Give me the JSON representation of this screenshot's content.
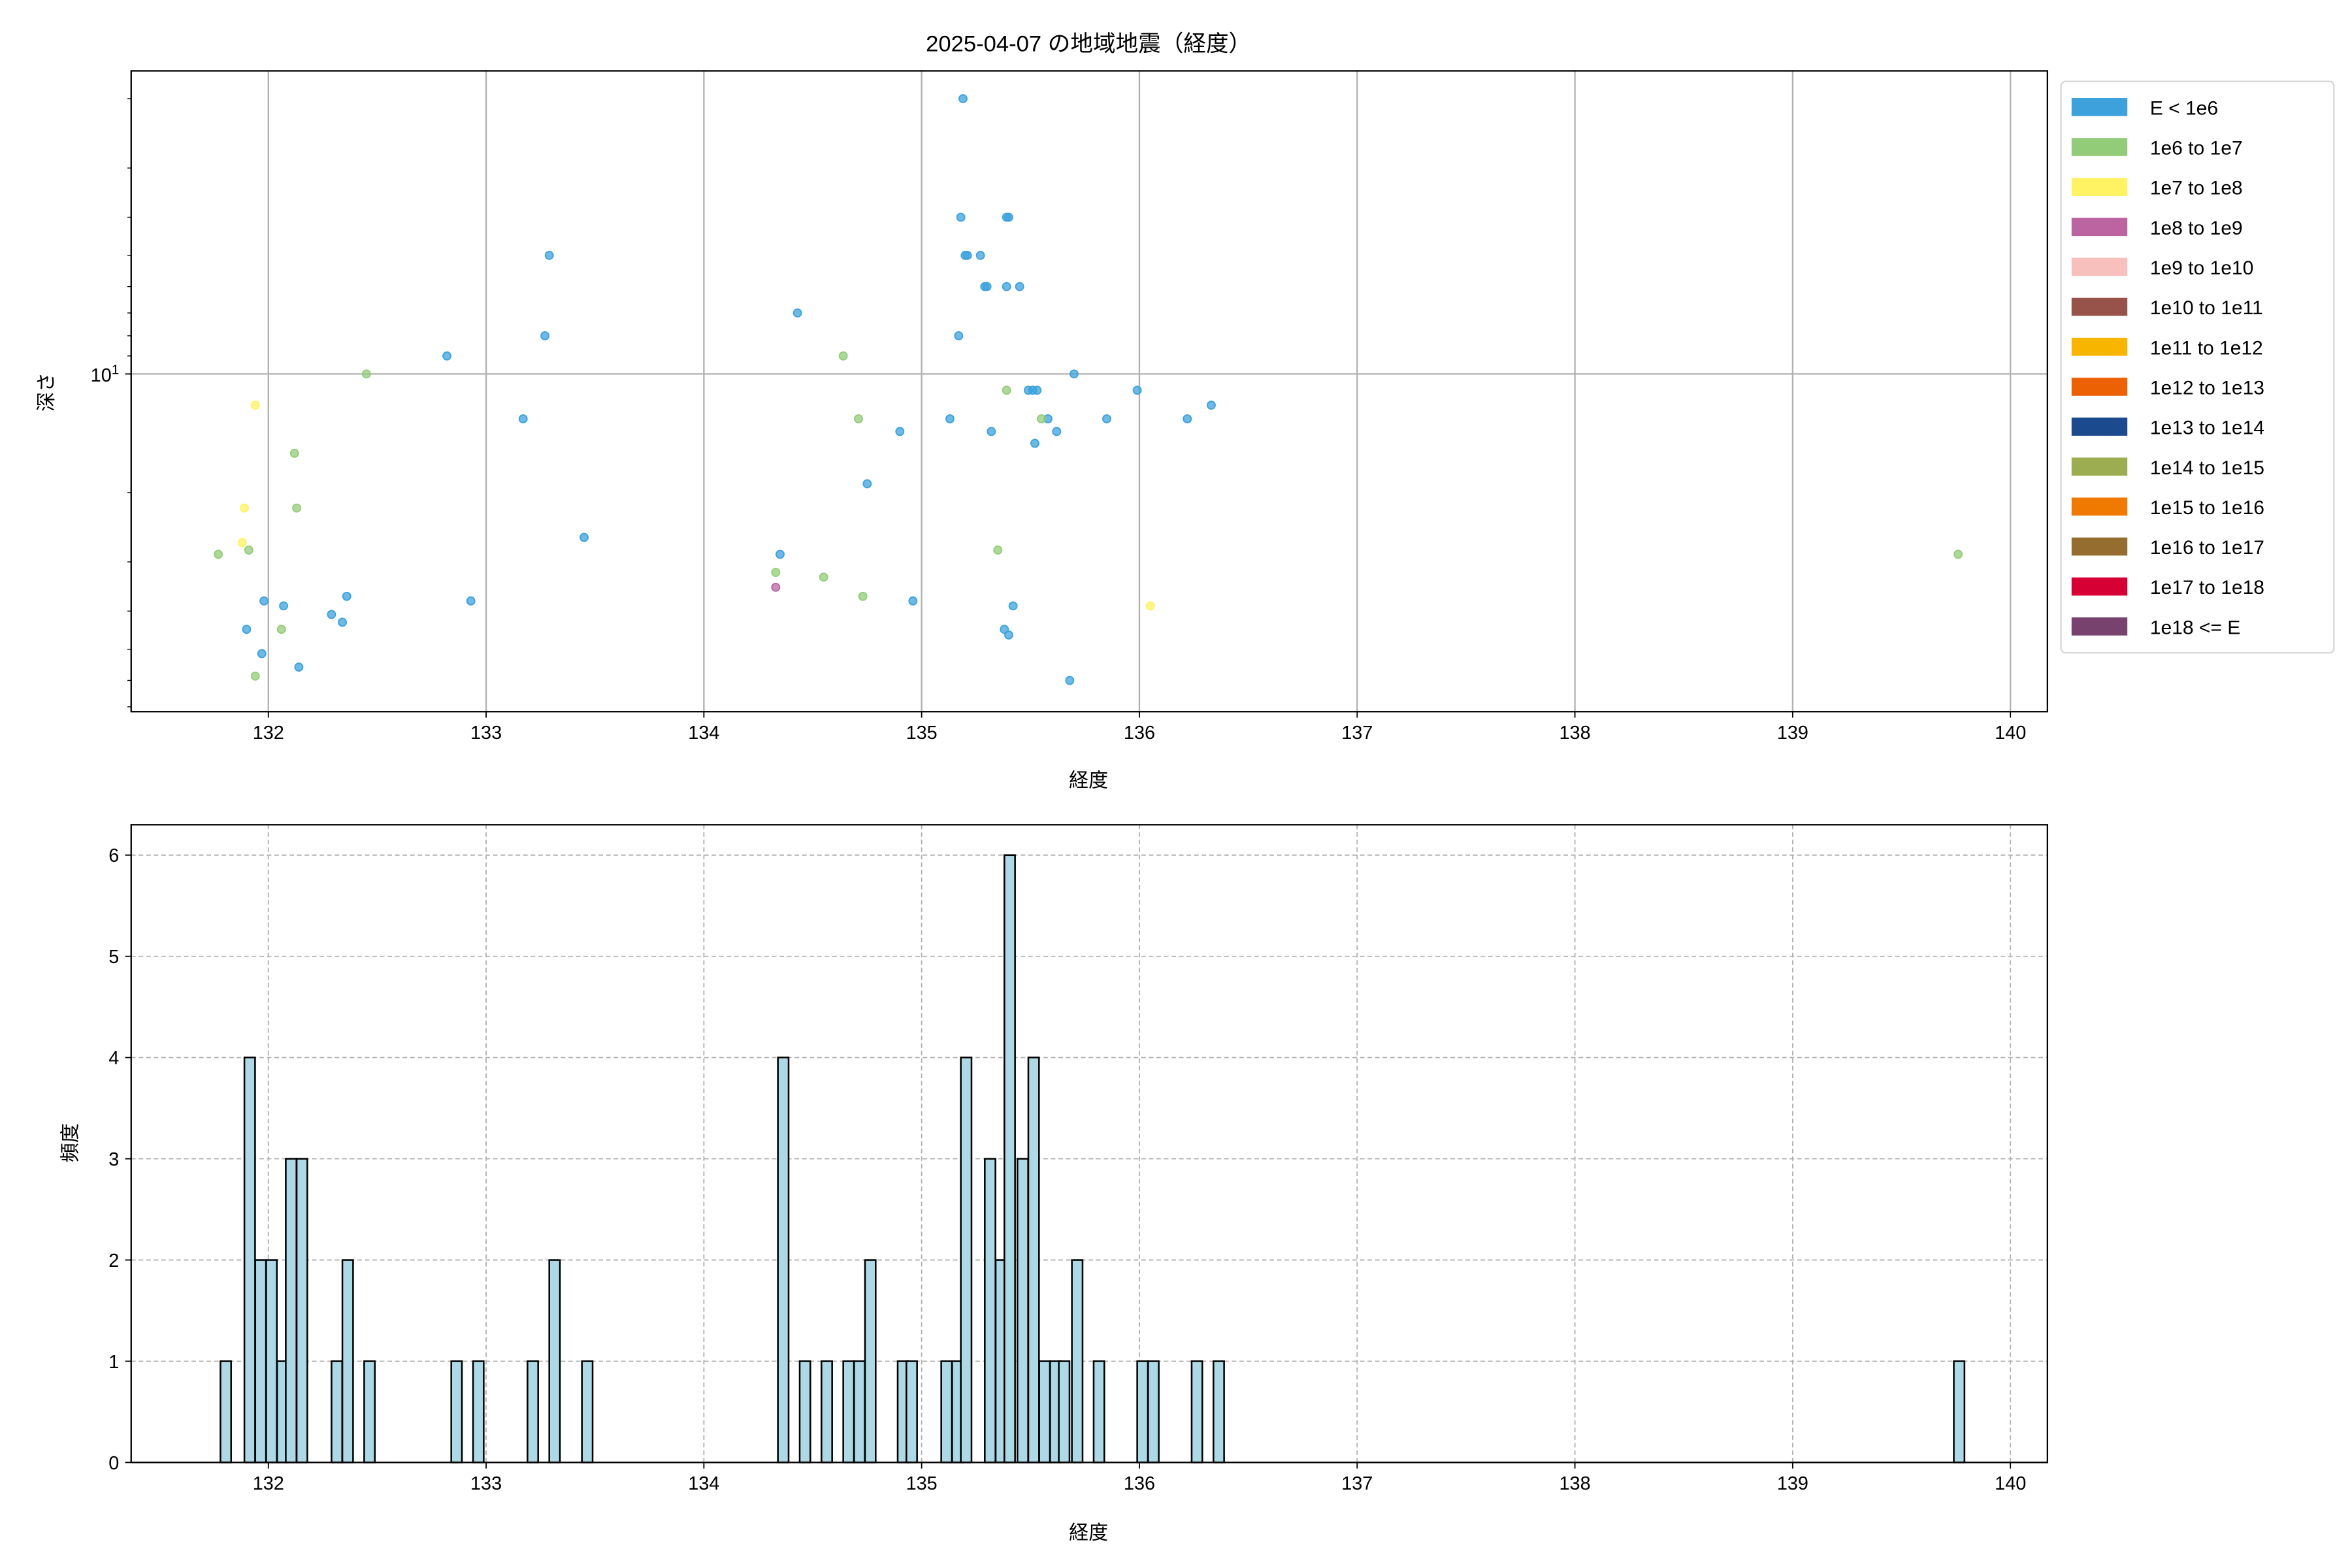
{
  "title": "2025-04-07 の地域地震（経度）",
  "chart_data": [
    {
      "type": "scatter",
      "title": "2025-04-07 の地域地震（経度）",
      "xlabel": "経度",
      "ylabel": "深さ",
      "xlim": [
        131.37,
        140.17
      ],
      "ylim": [
        1.7,
        72
      ],
      "y_scale": "log",
      "y_inverted": true,
      "x_ticks": [
        132,
        133,
        134,
        135,
        136,
        137,
        138,
        139,
        140
      ],
      "y_major_ticks": [
        {
          "value": 10,
          "label": "10",
          "exp": "1"
        }
      ],
      "grid": true,
      "legend_placement": "outside-right",
      "legend": [
        {
          "label": "E < 1e6",
          "color": "#3da2dc"
        },
        {
          "label": "1e6 to 1e7",
          "color": "#93cc79"
        },
        {
          "label": "1e7 to 1e8",
          "color": "#fff263"
        },
        {
          "label": "1e8 to 1e9",
          "color": "#bb64a1"
        },
        {
          "label": "1e9 to 1e10",
          "color": "#f7c0bc"
        },
        {
          "label": "1e10 to 1e11",
          "color": "#975349"
        },
        {
          "label": "1e11 to 1e12",
          "color": "#f8b500"
        },
        {
          "label": "1e12 to 1e13",
          "color": "#ec6104"
        },
        {
          "label": "1e13 to 1e14",
          "color": "#1b4a8f"
        },
        {
          "label": "1e14 to 1e15",
          "color": "#9bad50"
        },
        {
          "label": "1e15 to 1e16",
          "color": "#f07a00"
        },
        {
          "label": "1e16 to 1e17",
          "color": "#956e2f"
        },
        {
          "label": "1e17 to 1e18",
          "color": "#d70035"
        },
        {
          "label": "1e18 <= E",
          "color": "#78426f"
        }
      ],
      "series": [
        {
          "class": 0,
          "points": [
            [
              135.19,
              2.0
            ],
            [
              135.18,
              4.0
            ],
            [
              135.2,
              5.0
            ],
            [
              135.21,
              5.0
            ],
            [
              135.27,
              5.0
            ],
            [
              135.39,
              4.0
            ],
            [
              135.4,
              4.0
            ],
            [
              135.29,
              6.0
            ],
            [
              135.3,
              6.0
            ],
            [
              135.39,
              6.0
            ],
            [
              135.45,
              6.0
            ],
            [
              135.17,
              8.0
            ],
            [
              134.43,
              7.0
            ],
            [
              133.29,
              5.0
            ],
            [
              133.27,
              8.0
            ],
            [
              132.82,
              9.0
            ],
            [
              135.7,
              10.0
            ],
            [
              135.99,
              11.0
            ],
            [
              135.49,
              11.0
            ],
            [
              135.51,
              11.0
            ],
            [
              135.53,
              11.0
            ],
            [
              135.58,
              13.0
            ],
            [
              135.13,
              13.0
            ],
            [
              133.17,
              13.0
            ],
            [
              135.85,
              13.0
            ],
            [
              136.22,
              13.0
            ],
            [
              136.33,
              12.0
            ],
            [
              135.32,
              14.0
            ],
            [
              135.62,
              14.0
            ],
            [
              134.9,
              14.0
            ],
            [
              135.52,
              15.0
            ],
            [
              134.75,
              19.0
            ],
            [
              133.45,
              26.0
            ],
            [
              134.35,
              28.7
            ],
            [
              131.98,
              37.7
            ],
            [
              132.07,
              38.8
            ],
            [
              131.9,
              44.5
            ],
            [
              131.97,
              51.3
            ],
            [
              132.14,
              55.5
            ],
            [
              132.29,
              40.8
            ],
            [
              132.34,
              42.7
            ],
            [
              132.36,
              36.7
            ],
            [
              132.93,
              37.7
            ],
            [
              134.96,
              37.7
            ],
            [
              135.42,
              38.8
            ],
            [
              135.38,
              44.5
            ],
            [
              135.4,
              46.0
            ],
            [
              135.68,
              60.0
            ]
          ]
        },
        {
          "class": 1,
          "points": [
            [
              132.45,
              10.0
            ],
            [
              134.64,
              9.0
            ],
            [
              134.71,
              13.0
            ],
            [
              135.39,
              11.0
            ],
            [
              135.55,
              13.0
            ],
            [
              132.12,
              15.9
            ],
            [
              132.13,
              21.9
            ],
            [
              131.91,
              28.0
            ],
            [
              131.77,
              28.7
            ],
            [
              135.35,
              28.0
            ],
            [
              134.33,
              31.9
            ],
            [
              134.55,
              32.8
            ],
            [
              134.73,
              36.7
            ],
            [
              132.06,
              44.5
            ],
            [
              131.94,
              58.5
            ],
            [
              139.76,
              28.7
            ]
          ]
        },
        {
          "class": 2,
          "points": [
            [
              131.94,
              12.0
            ],
            [
              131.89,
              21.9
            ],
            [
              131.88,
              26.8
            ],
            [
              136.05,
              38.8
            ]
          ]
        },
        {
          "class": 3,
          "points": [
            [
              134.33,
              34.8
            ]
          ]
        }
      ]
    },
    {
      "type": "bar",
      "subtype": "histogram",
      "xlabel": "経度",
      "ylabel": "頻度",
      "xlim": [
        131.37,
        140.17
      ],
      "ylim": [
        0,
        6.3
      ],
      "x_ticks": [
        132,
        133,
        134,
        135,
        136,
        137,
        138,
        139,
        140
      ],
      "y_ticks": [
        0,
        1,
        2,
        3,
        4,
        5,
        6
      ],
      "grid": true,
      "grid_style": "dashed",
      "bar_color": "#add8e6",
      "edge_color": "#000000",
      "bin_width": 0.049,
      "bins": [
        [
          131.78,
          1
        ],
        [
          131.89,
          4
        ],
        [
          131.94,
          2
        ],
        [
          131.99,
          2
        ],
        [
          132.04,
          1
        ],
        [
          132.08,
          3
        ],
        [
          132.13,
          3
        ],
        [
          132.29,
          1
        ],
        [
          132.34,
          2
        ],
        [
          132.44,
          1
        ],
        [
          132.84,
          1
        ],
        [
          132.94,
          1
        ],
        [
          133.19,
          1
        ],
        [
          133.29,
          2
        ],
        [
          133.44,
          1
        ],
        [
          134.34,
          4
        ],
        [
          134.44,
          1
        ],
        [
          134.54,
          1
        ],
        [
          134.64,
          1
        ],
        [
          134.69,
          1
        ],
        [
          134.74,
          2
        ],
        [
          134.89,
          1
        ],
        [
          134.93,
          1
        ],
        [
          135.09,
          1
        ],
        [
          135.14,
          1
        ],
        [
          135.18,
          4
        ],
        [
          135.29,
          3
        ],
        [
          135.34,
          2
        ],
        [
          135.38,
          6
        ],
        [
          135.44,
          3
        ],
        [
          135.49,
          4
        ],
        [
          135.54,
          1
        ],
        [
          135.59,
          1
        ],
        [
          135.63,
          1
        ],
        [
          135.69,
          2
        ],
        [
          135.79,
          1
        ],
        [
          135.99,
          1
        ],
        [
          136.04,
          1
        ],
        [
          136.24,
          1
        ],
        [
          136.34,
          1
        ],
        [
          139.74,
          1
        ]
      ]
    }
  ]
}
